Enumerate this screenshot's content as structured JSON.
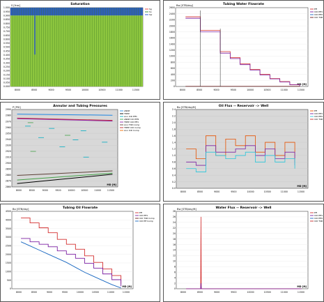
{
  "panels": [
    {
      "title": "Saturation",
      "ylabel": "S [frac]",
      "xlabel": "MD [ft]",
      "yticks": [
        "1.000",
        "0.950",
        "0.900",
        "0.850",
        "0.800",
        "0.750",
        "0.700",
        "0.650",
        "0.600",
        "0.550",
        "0.500",
        "0.450",
        "0.400",
        "0.350",
        "0.300",
        "0.250",
        "0.200",
        "0.150",
        "0.100",
        "0.050",
        "0.000"
      ],
      "xticks": [
        "8000",
        "8500",
        "9000",
        "9500",
        "10000",
        "10500",
        "11000",
        "11500"
      ],
      "legend": [
        {
          "label": "Sg",
          "color": "#e53935"
        },
        {
          "label": "So",
          "color": "#2a8a2a"
        },
        {
          "label": "Sw",
          "color": "#1f4fd8"
        }
      ]
    },
    {
      "title": "Tubing Water Flowrate",
      "ylabel": "Bw [STB/day]",
      "xlabel": "MD [ft]",
      "yticks": [
        "2600",
        "2400",
        "2200",
        "2000",
        "1800",
        "1600",
        "1400",
        "1200",
        "1000",
        "800",
        "600",
        "400",
        "200",
        "0"
      ],
      "xticks": [
        "8000",
        "8500",
        "9000",
        "9500",
        "10000",
        "10500",
        "11000",
        "11500"
      ],
      "legend": [
        {
          "label": "Eff",
          "color": "#d32f2f"
        },
        {
          "label": "ICD Eff1",
          "color": "#7b1fa2"
        },
        {
          "label": "ICD Eff2 Comp",
          "color": "#1565c0"
        },
        {
          "label": "ICD TSB Comp",
          "color": "#6d1b1b"
        }
      ]
    },
    {
      "title": "Annular and Tubing Pressures",
      "ylabel": "P [PSI]",
      "xlabel": "MD [ft]",
      "yticks": [
        "2990",
        "2980",
        "2970",
        "2960",
        "2950",
        "2940",
        "2930",
        "2920",
        "2910",
        "2900",
        "2890",
        "2880",
        "2870",
        "2860"
      ],
      "xticks": [
        "8000",
        "8500",
        "9000",
        "9500",
        "10000",
        "10500",
        "11000",
        "11500"
      ],
      "legend": [
        {
          "label": "ANNP",
          "color": "#1e88e5"
        },
        {
          "label": "TBHP",
          "color": "#000000"
        },
        {
          "label": "Ann ICD Eff1",
          "color": "#00acc1"
        },
        {
          "label": "ANNP ICD Eff2",
          "color": "#43a047"
        },
        {
          "label": "TBHP ICD Eff1",
          "color": "#8e24aa"
        },
        {
          "label": "Ann TSB Comp",
          "color": "#5d4037"
        },
        {
          "label": "TBHP ICD Comp",
          "color": "#c62828"
        },
        {
          "label": "Ann ICD Comp",
          "color": "#ef6c00"
        }
      ]
    },
    {
      "title": "Oil Flux -- Reservoir -> Well",
      "ylabel": "Bo [STB/day/ft]",
      "xlabel": "MD [ft]",
      "yticks": [
        "2.4",
        "2.2",
        "2.0",
        "1.8",
        "1.6",
        "1.4",
        "1.2",
        "1.0",
        "0.8",
        "0.6",
        "0.4",
        "0.2",
        "0.0"
      ],
      "xticks": [
        "8000",
        "8500",
        "9000",
        "9500",
        "10000",
        "10500",
        "11000",
        "11500"
      ],
      "legend": [
        {
          "label": "Eff",
          "color": "#e65100"
        },
        {
          "label": "ICD Eff1",
          "color": "#7b1fa2"
        },
        {
          "label": "ICD Eff2 Comp",
          "color": "#26c6da"
        },
        {
          "label": "ICD TSB Comp",
          "color": "#c62828"
        }
      ]
    },
    {
      "title": "Tubing Oil Flowrate",
      "ylabel": "Bo [STB/day]",
      "xlabel": "MD [ft]",
      "yticks": [
        "4500",
        "4000",
        "3500",
        "3000",
        "2500",
        "2000",
        "1500",
        "1000",
        "500",
        "0"
      ],
      "xticks": [
        "8000",
        "8500",
        "9000",
        "9500",
        "10000",
        "10500",
        "11000",
        "11500"
      ],
      "legend": [
        {
          "label": "Eff",
          "color": "#d32f2f"
        },
        {
          "label": "ICD Eff1",
          "color": "#7b1fa2"
        },
        {
          "label": "ICD TSB Comp",
          "color": "#6d1b1b"
        },
        {
          "label": "ICD Eff Comp",
          "color": "#1565c0"
        }
      ]
    },
    {
      "title": "Water Flux -- Reservoir -> Well",
      "ylabel": "Bw [STB/day/ft]",
      "xlabel": "MD [ft]",
      "yticks": [
        "28",
        "26",
        "24",
        "22",
        "20",
        "18",
        "16",
        "14",
        "12",
        "10",
        "8",
        "6",
        "4",
        "2",
        "0"
      ],
      "xticks": [
        "8000",
        "8500",
        "9000",
        "9500",
        "10000",
        "10500",
        "11000",
        "11500"
      ],
      "legend": [
        {
          "label": "Eff",
          "color": "#d32f2f"
        },
        {
          "label": "ICD Eff1",
          "color": "#7b1fa2"
        },
        {
          "label": "ICD Eff2 Comp",
          "color": "#1565c0"
        },
        {
          "label": "ICD TSB Comp",
          "color": "#c62828"
        }
      ]
    }
  ],
  "chart_data": [
    {
      "type": "bar",
      "title": "Saturation",
      "ylabel": "S [frac]",
      "xlabel": "MD [ft]",
      "ylim": [
        0,
        1
      ],
      "xlim": [
        7700,
        11700
      ],
      "series": [
        {
          "name": "So",
          "values": [
            0.9
          ]
        },
        {
          "name": "Sw",
          "values": [
            0.1
          ]
        }
      ],
      "grid": true
    },
    {
      "type": "line",
      "title": "Tubing Water Flowrate",
      "ylabel": "Bw [STB/day]",
      "xlabel": "MD [ft]",
      "ylim": [
        0,
        2600
      ],
      "xlim": [
        7700,
        11700
      ],
      "x": [
        8000,
        8450,
        8450,
        9050,
        9050,
        9350,
        9650,
        9950,
        10250,
        10550,
        10850,
        11150,
        11450
      ],
      "series": [
        {
          "name": "Eff",
          "values": [
            2300,
            2300,
            1850,
            1500,
            1150,
            950,
            750,
            560,
            400,
            260,
            160,
            60,
            10
          ]
        },
        {
          "name": "ICD Eff1",
          "values": [
            2250,
            2250,
            1800,
            1450,
            1100,
            920,
            720,
            540,
            380,
            250,
            150,
            55,
            10
          ]
        },
        {
          "name": "ICD TSB Comp",
          "values": [
            5,
            5,
            5,
            5,
            5,
            5,
            5,
            5,
            5,
            5,
            5,
            5,
            5
          ]
        }
      ],
      "grid": true
    },
    {
      "type": "line",
      "title": "Annular and Tubing Pressures",
      "ylabel": "P [PSI]",
      "xlabel": "MD [ft]",
      "ylim": [
        2860,
        2995
      ],
      "xlim": [
        7700,
        11700
      ],
      "x": [
        7900,
        11500
      ],
      "series": [
        {
          "name": "ANNP",
          "values": [
            2987,
            2985
          ]
        },
        {
          "name": "TBHP ICD Comp",
          "values": [
            2980,
            2976
          ]
        },
        {
          "name": "TBHP ICD Eff1",
          "values": [
            2979,
            2975
          ]
        },
        {
          "name": "Ann TSB Comp",
          "values": [
            2880,
            2888
          ]
        },
        {
          "name": "TBHP",
          "values": [
            2866,
            2882
          ]
        },
        {
          "name": "ANNP ICD Eff2",
          "values": [
            2872,
            2884
          ]
        }
      ],
      "grid": true
    },
    {
      "type": "line",
      "title": "Oil Flux -- Reservoir -> Well",
      "ylabel": "Bo [STB/day/ft]",
      "xlabel": "MD [ft]",
      "ylim": [
        0,
        2.4
      ],
      "xlim": [
        7700,
        11700
      ],
      "x": [
        8000,
        8300,
        8600,
        8900,
        9200,
        9500,
        9800,
        10100,
        10400,
        10700,
        11000,
        11300
      ],
      "series": [
        {
          "name": "Eff",
          "values": [
            1.2,
            0.9,
            1.6,
            1.0,
            1.5,
            1.3,
            1.6,
            1.1,
            1.4,
            1.0,
            1.4,
            0.8
          ]
        },
        {
          "name": "ICD Eff1",
          "values": [
            0.8,
            0.7,
            1.3,
            1.1,
            1.1,
            1.2,
            1.3,
            1.0,
            1.2,
            0.9,
            1.1,
            0.7
          ]
        },
        {
          "name": "ICD Eff2 Comp",
          "values": [
            0.6,
            0.5,
            1.1,
            1.0,
            0.9,
            1.0,
            1.1,
            0.8,
            1.0,
            0.8,
            0.9,
            0.6
          ]
        }
      ],
      "grid": true
    },
    {
      "type": "line",
      "title": "Tubing Oil Flowrate",
      "ylabel": "Bo [STB/day]",
      "xlabel": "MD [ft]",
      "ylim": [
        0,
        4700
      ],
      "xlim": [
        7700,
        11700
      ],
      "x": [
        8000,
        8300,
        8600,
        8900,
        9200,
        9500,
        9800,
        10100,
        10400,
        10700,
        11000,
        11300
      ],
      "series": [
        {
          "name": "Eff",
          "values": [
            4300,
            4000,
            3700,
            3400,
            3000,
            2700,
            2400,
            2000,
            1600,
            1200,
            800,
            300
          ]
        },
        {
          "name": "ICD Eff1",
          "values": [
            3050,
            2850,
            2700,
            2550,
            2300,
            2100,
            1850,
            1550,
            1250,
            900,
            550,
            150
          ]
        },
        {
          "name": "ICD Eff Comp",
          "values": [
            2850,
            2600,
            2350,
            2100,
            1850,
            1600,
            1300,
            1000,
            750,
            500,
            250,
            50
          ]
        }
      ],
      "grid": true
    },
    {
      "type": "line",
      "title": "Water Flux -- Reservoir -> Well",
      "ylabel": "Bw [STB/day/ft]",
      "xlabel": "MD [ft]",
      "ylim": [
        0,
        28
      ],
      "xlim": [
        7700,
        11700
      ],
      "x": [
        8000,
        8440,
        8450,
        8460,
        11500
      ],
      "series": [
        {
          "name": "Eff",
          "values": [
            0,
            0,
            26,
            0,
            0
          ]
        },
        {
          "name": "ICD Eff1",
          "values": [
            0,
            0,
            2,
            0,
            0
          ]
        }
      ],
      "grid": true
    }
  ]
}
